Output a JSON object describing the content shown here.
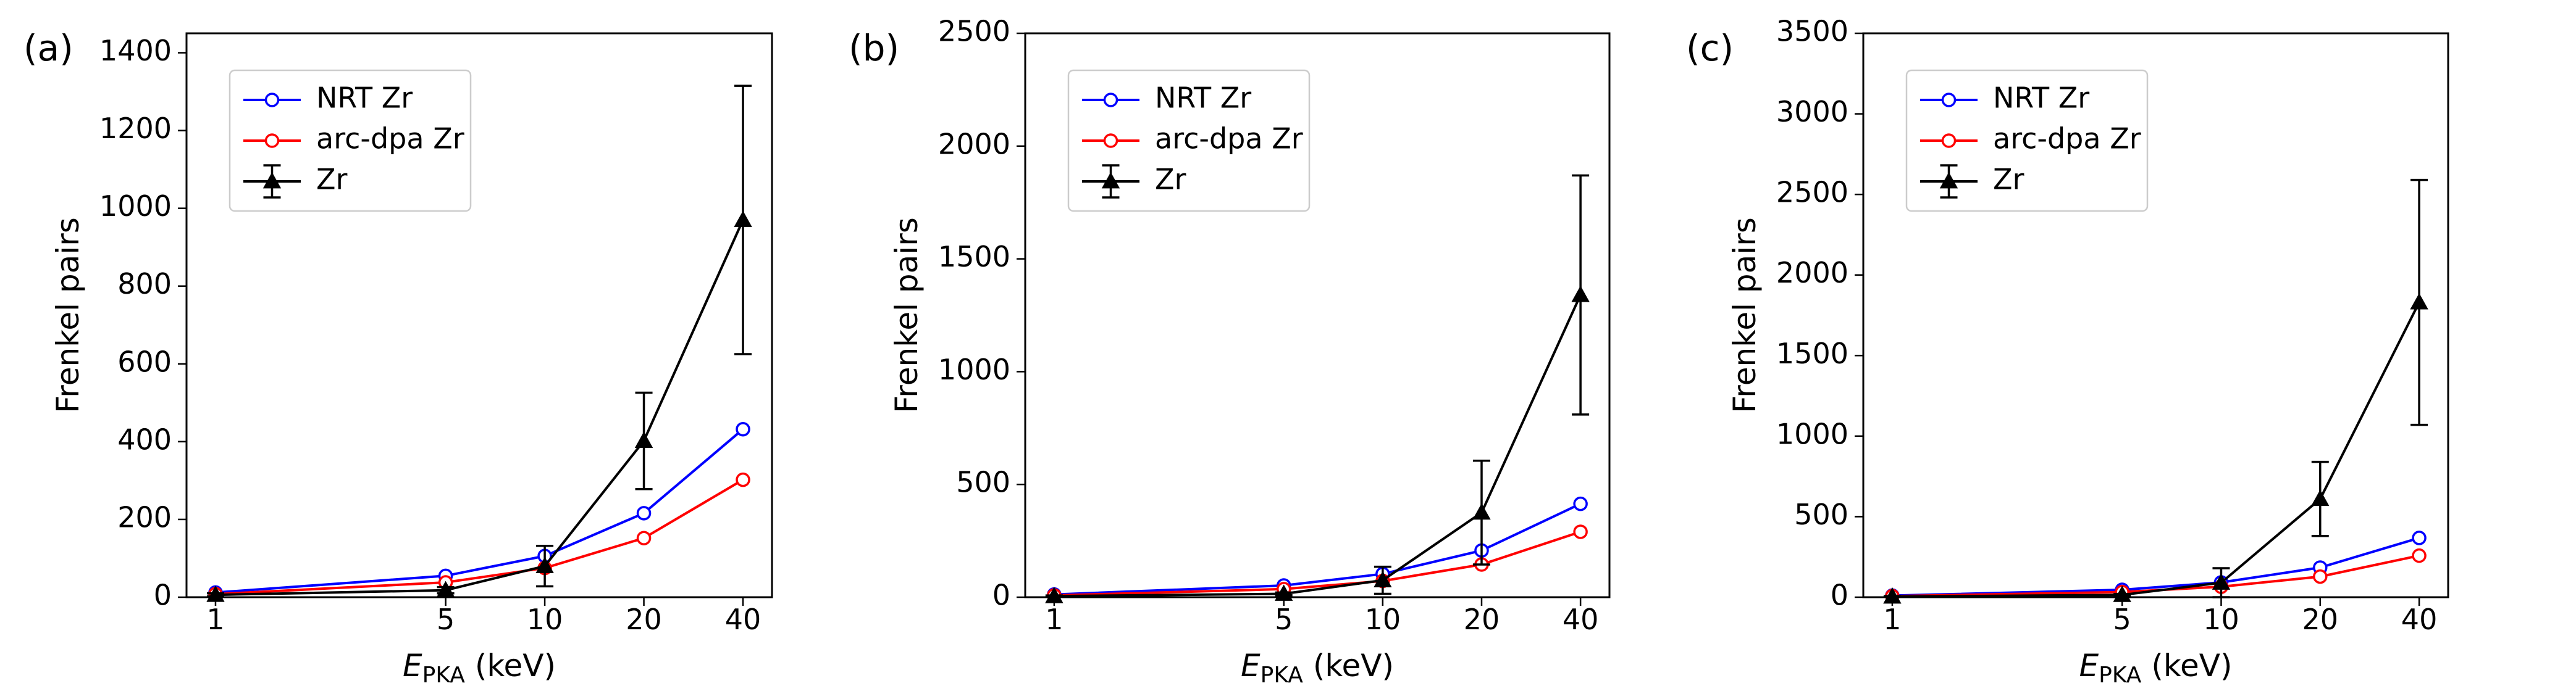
{
  "chart_data": [
    {
      "type": "line",
      "panel_label": "(a)",
      "xscale": "log",
      "x": [
        1,
        5,
        10,
        20,
        40
      ],
      "xticks": [
        "1",
        "5",
        "10",
        "20",
        "40"
      ],
      "xlabel": {
        "symbol": "E",
        "subscript": "PKA",
        "unit": " (keV)"
      },
      "ylabel": "Frenkel pairs",
      "ylim": [
        0,
        1450
      ],
      "yticks": [
        0,
        200,
        400,
        600,
        800,
        1000,
        1200,
        1400
      ],
      "grid": false,
      "legend_position": "upper-left",
      "series": [
        {
          "name": "NRT Zr",
          "color": "#0000ff",
          "marker": "open-circle",
          "values": [
            12,
            55,
            106,
            216,
            432
          ]
        },
        {
          "name": "arc-dpa Zr",
          "color": "#ff0000",
          "marker": "open-circle",
          "values": [
            8,
            38,
            75,
            152,
            302
          ]
        },
        {
          "name": "Zr",
          "color": "#000000",
          "marker": "filled-triangle",
          "values": [
            6,
            18,
            80,
            402,
            970
          ],
          "error": [
            4,
            8,
            52,
            124,
            345
          ]
        }
      ]
    },
    {
      "type": "line",
      "panel_label": "(b)",
      "xscale": "log",
      "x": [
        1,
        5,
        10,
        20,
        40
      ],
      "xticks": [
        "1",
        "5",
        "10",
        "20",
        "40"
      ],
      "xlabel": {
        "symbol": "E",
        "subscript": "PKA",
        "unit": " (keV)"
      },
      "ylabel": "Frenkel pairs",
      "ylim": [
        0,
        2500
      ],
      "yticks": [
        0,
        500,
        1000,
        1500,
        2000,
        2500
      ],
      "grid": false,
      "legend_position": "upper-left",
      "series": [
        {
          "name": "NRT Zr",
          "color": "#0000ff",
          "marker": "open-circle",
          "values": [
            12,
            52,
            103,
            207,
            414
          ]
        },
        {
          "name": "arc-dpa Zr",
          "color": "#ff0000",
          "marker": "open-circle",
          "values": [
            8,
            36,
            72,
            145,
            290
          ]
        },
        {
          "name": "Zr",
          "color": "#000000",
          "marker": "filled-triangle",
          "values": [
            5,
            15,
            75,
            375,
            1340
          ],
          "error": [
            3,
            6,
            60,
            230,
            530
          ]
        }
      ]
    },
    {
      "type": "line",
      "panel_label": "(c)",
      "xscale": "log",
      "x": [
        1,
        5,
        10,
        20,
        40
      ],
      "xticks": [
        "1",
        "5",
        "10",
        "20",
        "40"
      ],
      "xlabel": {
        "symbol": "E",
        "subscript": "PKA",
        "unit": " (keV)"
      },
      "ylabel": "Frenkel pairs",
      "ylim": [
        0,
        3500
      ],
      "yticks": [
        0,
        500,
        1000,
        1500,
        2000,
        2500,
        3000,
        3500
      ],
      "grid": false,
      "legend_position": "upper-left",
      "series": [
        {
          "name": "NRT Zr",
          "color": "#0000ff",
          "marker": "open-circle",
          "values": [
            10,
            46,
            92,
            184,
            368
          ]
        },
        {
          "name": "arc-dpa Zr",
          "color": "#ff0000",
          "marker": "open-circle",
          "values": [
            7,
            32,
            65,
            128,
            258
          ]
        },
        {
          "name": "Zr",
          "color": "#000000",
          "marker": "filled-triangle",
          "values": [
            4,
            14,
            90,
            610,
            1830
          ],
          "error": [
            3,
            6,
            90,
            230,
            760
          ]
        }
      ]
    }
  ]
}
